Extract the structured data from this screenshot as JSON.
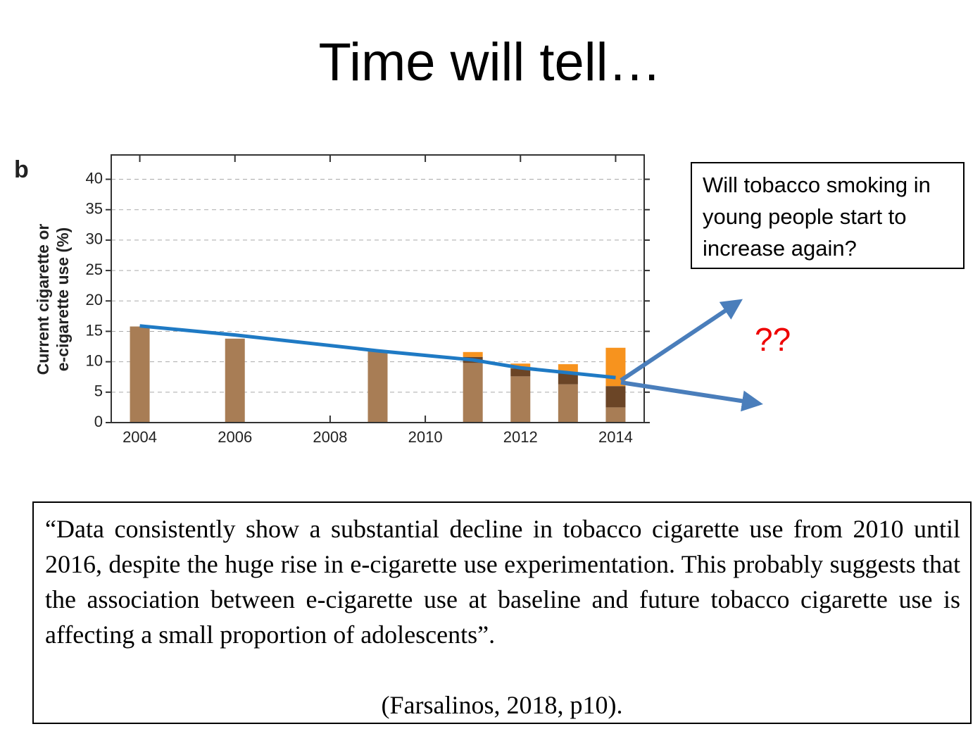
{
  "slide": {
    "title": "Time will tell…",
    "callout": [
      "Will tobacco smoking in",
      "young people start to",
      "increase again?"
    ],
    "question_marks": "??",
    "quote": "“Data consistently show a substantial decline in tobacco cigarette use from 2010 until 2016, despite the huge rise in e-cigarette use experimentation. This probably suggests that the association between e-cigarette use at baseline and future tobacco cigarette use is affecting a small proportion of adolescents”.",
    "citation": "(Farsalinos, 2018, p10)."
  },
  "chart_data": {
    "type": "bar",
    "panel_label": "b",
    "ylabel": [
      "Current cigarette or",
      "e-cigarette use (%)"
    ],
    "x": [
      2004,
      2006,
      2009,
      2011,
      2012,
      2013,
      2014
    ],
    "series": [
      {
        "color": "#a87d55",
        "values": [
          15.8,
          13.8,
          11.9,
          9.8,
          7.6,
          6.3,
          2.5
        ]
      },
      {
        "color": "#6b4526",
        "values": [
          null,
          null,
          null,
          1.0,
          1.3,
          1.8,
          3.5
        ]
      },
      {
        "color": "#f7931e",
        "values": [
          null,
          null,
          null,
          0.8,
          0.8,
          1.5,
          6.3
        ]
      }
    ],
    "trend": {
      "color": "#1f7ac4",
      "values": [
        15.9,
        14.4,
        11.8,
        10.3,
        9.0,
        8.2,
        7.4
      ]
    },
    "xlim": [
      2003.4,
      2014.6
    ],
    "xticks": [
      2004,
      2006,
      2008,
      2010,
      2012,
      2014
    ],
    "ylim": [
      0,
      44
    ],
    "yticks": [
      0,
      5,
      10,
      15,
      20,
      25,
      30,
      35,
      40
    ],
    "grid": true
  }
}
